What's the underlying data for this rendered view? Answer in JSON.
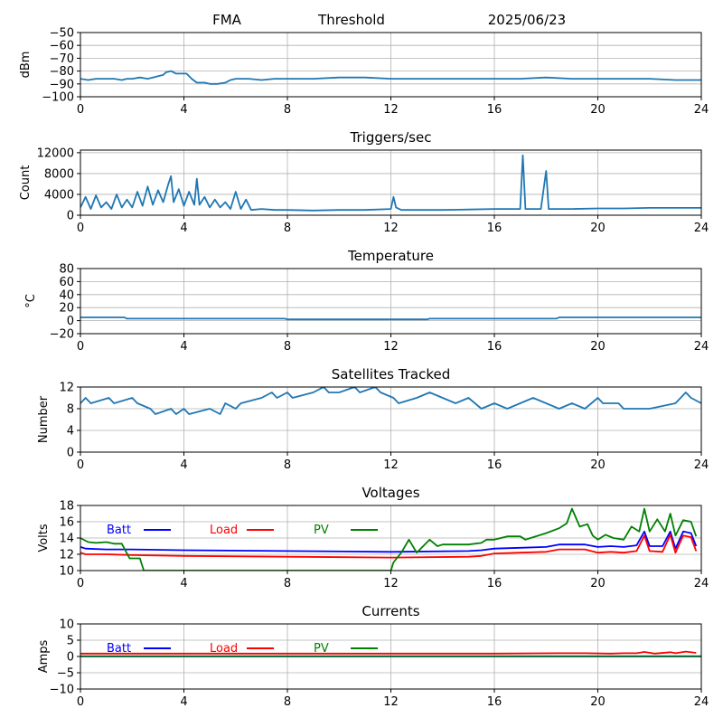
{
  "header": {
    "left": "FMA",
    "center": "Threshold",
    "right": "2025/06/23"
  },
  "colors": {
    "series_default": "#1f77b4",
    "batt": "#0000ff",
    "load": "#ff0000",
    "pv": "#008000",
    "grid": "#b0b0b0",
    "axis": "#000000"
  },
  "chart_data": [
    {
      "type": "line",
      "title": "",
      "xlabel": "",
      "ylabel": "dBm",
      "xlim": [
        0,
        24
      ],
      "ylim": [
        -100,
        -50
      ],
      "xticks": [
        0,
        4,
        8,
        12,
        16,
        20,
        24
      ],
      "yticks": [
        -100,
        -90,
        -80,
        -70,
        -60,
        -50
      ],
      "grid": true,
      "series": [
        {
          "color": "#1f77b4",
          "x": [
            0,
            0.3,
            0.6,
            1,
            1.3,
            1.6,
            1.8,
            2,
            2.3,
            2.6,
            2.8,
            3.0,
            3.2,
            3.3,
            3.5,
            3.7,
            3.9,
            4.1,
            4.3,
            4.5,
            4.8,
            5.0,
            5.3,
            5.6,
            5.8,
            6.0,
            6.5,
            7.0,
            7.5,
            8.0,
            9.0,
            10.0,
            11.0,
            12.0,
            13.0,
            14.0,
            14.5,
            15.0,
            16.0,
            17.0,
            18.0,
            19.0,
            20.0,
            21.0,
            22.0,
            23.0,
            24.0
          ],
          "y": [
            -86,
            -87,
            -86,
            -86,
            -86,
            -87,
            -86,
            -86,
            -85,
            -86,
            -85,
            -84,
            -83,
            -81,
            -80,
            -82,
            -82,
            -82,
            -86,
            -89,
            -89,
            -90,
            -90,
            -89,
            -87,
            -86,
            -86,
            -87,
            -86,
            -86,
            -86,
            -85,
            -85,
            -86,
            -86,
            -86,
            -86,
            -86,
            -86,
            -86,
            -85,
            -86,
            -86,
            -86,
            -86,
            -87,
            -87
          ]
        }
      ]
    },
    {
      "type": "line",
      "title": "Triggers/sec",
      "xlabel": "",
      "ylabel": "Count",
      "xlim": [
        0,
        24
      ],
      "ylim": [
        0,
        12500
      ],
      "xticks": [
        0,
        4,
        8,
        12,
        16,
        20,
        24
      ],
      "yticks": [
        0,
        4000,
        8000,
        12000
      ],
      "grid": true,
      "series": [
        {
          "color": "#1f77b4",
          "x": [
            0,
            0.2,
            0.4,
            0.6,
            0.8,
            1.0,
            1.2,
            1.4,
            1.6,
            1.8,
            2.0,
            2.2,
            2.4,
            2.6,
            2.8,
            3.0,
            3.2,
            3.4,
            3.5,
            3.6,
            3.8,
            4.0,
            4.2,
            4.4,
            4.5,
            4.6,
            4.8,
            5.0,
            5.2,
            5.4,
            5.6,
            5.8,
            6.0,
            6.2,
            6.4,
            6.6,
            7.0,
            7.5,
            8.0,
            9.0,
            10.0,
            11.0,
            12.0,
            12.1,
            12.2,
            12.4,
            13.0,
            14.0,
            15.0,
            16.0,
            17.0,
            17.1,
            17.2,
            17.4,
            17.8,
            18.0,
            18.1,
            18.4,
            19.0,
            20.0,
            21.0,
            22.0,
            23.0,
            24.0
          ],
          "y": [
            1500,
            3500,
            1200,
            3800,
            1500,
            2500,
            1200,
            4000,
            1500,
            3000,
            1500,
            4500,
            1800,
            5500,
            2000,
            4800,
            2500,
            6000,
            7500,
            2500,
            5000,
            1800,
            4500,
            2000,
            7000,
            2000,
            3500,
            1500,
            3000,
            1500,
            2500,
            1200,
            4500,
            1200,
            3000,
            1000,
            1200,
            1000,
            1000,
            900,
            1000,
            1000,
            1200,
            3500,
            1500,
            1000,
            1000,
            1000,
            1100,
            1200,
            1200,
            11500,
            1200,
            1200,
            1200,
            8500,
            1200,
            1200,
            1200,
            1300,
            1300,
            1400,
            1400,
            1400
          ]
        }
      ]
    },
    {
      "type": "line",
      "title": "Temperature",
      "xlabel": "",
      "ylabel": "°C",
      "xlim": [
        0,
        24
      ],
      "ylim": [
        -20,
        80
      ],
      "xticks": [
        0,
        4,
        8,
        12,
        16,
        20,
        24
      ],
      "yticks": [
        -20,
        0,
        20,
        40,
        60,
        80
      ],
      "grid": true,
      "series": [
        {
          "color": "#1f77b4",
          "x": [
            0,
            1.7,
            1.8,
            7.9,
            8.0,
            13.4,
            13.5,
            18.4,
            18.5,
            24.0
          ],
          "y": [
            5,
            5,
            3,
            3,
            2,
            2,
            3,
            3,
            5,
            5
          ]
        }
      ]
    },
    {
      "type": "line",
      "title": "Satellites Tracked",
      "xlabel": "",
      "ylabel": "Number",
      "xlim": [
        0,
        24
      ],
      "ylim": [
        0,
        12
      ],
      "xticks": [
        0,
        4,
        8,
        12,
        16,
        20,
        24
      ],
      "yticks": [
        0,
        4,
        8,
        12
      ],
      "grid": true,
      "series": [
        {
          "color": "#1f77b4",
          "x": [
            0,
            0.2,
            0.4,
            1.1,
            1.3,
            2.0,
            2.2,
            2.7,
            2.9,
            3.5,
            3.7,
            4.0,
            4.2,
            5.0,
            5.4,
            5.6,
            6.0,
            6.2,
            7.0,
            7.4,
            7.6,
            8.0,
            8.2,
            9.0,
            9.4,
            9.6,
            10.0,
            10.6,
            10.8,
            11.4,
            11.6,
            12.1,
            12.3,
            13.0,
            13.5,
            14.0,
            14.5,
            15.0,
            15.5,
            16.0,
            16.5,
            17.0,
            17.5,
            18.0,
            18.5,
            19.0,
            19.5,
            20.0,
            20.2,
            20.8,
            21.0,
            22.0,
            23.0,
            23.4,
            23.6,
            24.0
          ],
          "y": [
            9,
            10,
            9,
            10,
            9,
            10,
            9,
            8,
            7,
            8,
            7,
            8,
            7,
            8,
            7,
            9,
            8,
            9,
            10,
            11,
            10,
            11,
            10,
            11,
            12,
            11,
            11,
            12,
            11,
            12,
            11,
            10,
            9,
            10,
            11,
            10,
            9,
            10,
            8,
            9,
            8,
            9,
            10,
            9,
            8,
            9,
            8,
            10,
            9,
            9,
            8,
            8,
            9,
            11,
            10,
            9
          ]
        }
      ]
    },
    {
      "type": "line",
      "title": "Voltages",
      "xlabel": "",
      "ylabel": "Volts",
      "xlim": [
        0,
        24
      ],
      "ylim": [
        10,
        18
      ],
      "xticks": [
        0,
        4,
        8,
        12,
        16,
        20,
        24
      ],
      "yticks": [
        10,
        12,
        14,
        16,
        18
      ],
      "grid": true,
      "legend": "top-left",
      "series": [
        {
          "name": "Batt",
          "color": "#0000ff",
          "x": [
            0,
            0.2,
            1.0,
            2.0,
            4.0,
            8.0,
            12.0,
            15.0,
            15.5,
            16.0,
            17.0,
            18.0,
            18.5,
            19.5,
            20.0,
            20.5,
            21.0,
            21.5,
            21.8,
            22.0,
            22.5,
            22.8,
            23.0,
            23.3,
            23.6,
            23.8
          ],
          "y": [
            12.9,
            12.7,
            12.6,
            12.6,
            12.5,
            12.4,
            12.3,
            12.4,
            12.5,
            12.7,
            12.8,
            12.9,
            13.2,
            13.2,
            12.9,
            13.0,
            12.9,
            13.1,
            14.8,
            13.0,
            13.0,
            14.8,
            12.7,
            14.8,
            14.6,
            13.0
          ]
        },
        {
          "name": "Load",
          "color": "#ff0000",
          "x": [
            0,
            0.2,
            1.0,
            2.0,
            4.0,
            8.0,
            12.0,
            15.0,
            15.5,
            16.0,
            17.0,
            18.0,
            18.5,
            19.5,
            20.0,
            20.5,
            21.0,
            21.5,
            21.8,
            22.0,
            22.5,
            22.8,
            23.0,
            23.3,
            23.6,
            23.8
          ],
          "y": [
            12.2,
            12.0,
            12.0,
            11.9,
            11.8,
            11.7,
            11.6,
            11.7,
            11.8,
            12.1,
            12.2,
            12.3,
            12.6,
            12.6,
            12.2,
            12.3,
            12.2,
            12.4,
            14.3,
            12.4,
            12.3,
            14.4,
            12.2,
            14.3,
            14.1,
            12.4
          ]
        },
        {
          "name": "PV",
          "color": "#008000",
          "x": [
            0,
            0.3,
            0.6,
            1.0,
            1.3,
            1.6,
            1.9,
            2.1,
            2.3,
            2.45,
            12.0,
            12.1,
            12.4,
            12.7,
            13.0,
            13.5,
            13.8,
            14.0,
            14.5,
            15.0,
            15.5,
            15.7,
            16.0,
            16.5,
            17.0,
            17.2,
            17.5,
            18.0,
            18.5,
            18.8,
            19.0,
            19.3,
            19.6,
            19.8,
            20.0,
            20.3,
            20.6,
            21.0,
            21.3,
            21.6,
            21.8,
            22.0,
            22.3,
            22.6,
            22.8,
            23.0,
            23.3,
            23.6,
            23.8
          ],
          "y": [
            14.0,
            13.5,
            13.4,
            13.5,
            13.3,
            13.3,
            11.5,
            11.5,
            11.5,
            10.0,
            10.0,
            11.0,
            12.2,
            13.8,
            12.2,
            13.8,
            13.0,
            13.2,
            13.2,
            13.2,
            13.4,
            13.8,
            13.8,
            14.2,
            14.2,
            13.8,
            14.1,
            14.6,
            15.2,
            15.8,
            17.6,
            15.4,
            15.7,
            14.3,
            13.8,
            14.4,
            14.0,
            13.8,
            15.4,
            14.8,
            17.6,
            14.8,
            16.3,
            14.8,
            17.0,
            14.3,
            16.2,
            16.0,
            14.2
          ]
        }
      ]
    },
    {
      "type": "line",
      "title": "Currents",
      "xlabel": "",
      "ylabel": "Amps",
      "xlim": [
        0,
        24
      ],
      "ylim": [
        -10,
        10
      ],
      "xticks": [
        0,
        4,
        8,
        12,
        16,
        20,
        24
      ],
      "yticks": [
        -10,
        -5,
        0,
        5,
        10
      ],
      "grid": true,
      "legend": "top-left",
      "series": [
        {
          "name": "Batt",
          "color": "#0000ff",
          "x": [
            0,
            24
          ],
          "y": [
            0,
            0
          ]
        },
        {
          "name": "Load",
          "color": "#ff0000",
          "x": [
            0,
            4,
            8,
            12,
            16,
            18.5,
            19.5,
            20.5,
            21.0,
            21.5,
            21.8,
            22.2,
            22.8,
            23.0,
            23.4,
            23.8
          ],
          "y": [
            0.9,
            0.9,
            0.9,
            0.9,
            0.9,
            1.0,
            1.0,
            0.9,
            1.0,
            1.0,
            1.4,
            0.9,
            1.3,
            1.0,
            1.5,
            1.1
          ]
        },
        {
          "name": "PV",
          "color": "#008000",
          "x": [
            0,
            24
          ],
          "y": [
            0.1,
            0.1
          ]
        }
      ]
    }
  ]
}
